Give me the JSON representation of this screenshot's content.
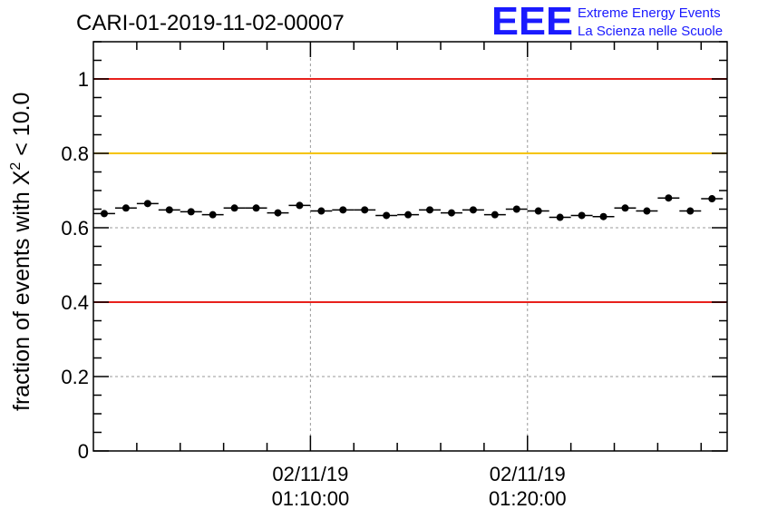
{
  "chart_data": {
    "type": "scatter",
    "title": "CARI-01-2019-11-02-00007",
    "ylabel_main": "fraction of events with X",
    "ylabel_sup": "2",
    "ylabel_tail": " < 10.0",
    "xlabel": "",
    "ylim": [
      0,
      1.1
    ],
    "xlim_minutes": [
      0,
      29.2
    ],
    "y_ticks": [
      {
        "value": 0,
        "label": "0"
      },
      {
        "value": 0.2,
        "label": "0.2"
      },
      {
        "value": 0.4,
        "label": "0.4"
      },
      {
        "value": 0.6,
        "label": "0.6"
      },
      {
        "value": 0.8,
        "label": "0.8"
      },
      {
        "value": 1,
        "label": "1"
      }
    ],
    "x_ticks": [
      {
        "minute": 10,
        "date": "02/11/19",
        "time": "01:10:00"
      },
      {
        "minute": 20,
        "date": "02/11/19",
        "time": "01:20:00"
      }
    ],
    "reference_lines": [
      {
        "y": 1.0,
        "color": "#e8211c"
      },
      {
        "y": 0.8,
        "color": "#f5c400"
      },
      {
        "y": 0.4,
        "color": "#e8211c"
      }
    ],
    "bin_width_minutes": 1,
    "series": [
      {
        "name": "fraction",
        "marker_color": "#000000",
        "x": [
          0.5,
          1.5,
          2.5,
          3.5,
          4.5,
          5.5,
          6.5,
          7.5,
          8.5,
          9.5,
          10.5,
          11.5,
          12.5,
          13.5,
          14.5,
          15.5,
          16.5,
          17.5,
          18.5,
          19.5,
          20.5,
          21.5,
          22.5,
          23.5,
          24.5,
          25.5,
          26.5,
          27.5,
          28.5
        ],
        "values": [
          0.638,
          0.653,
          0.665,
          0.648,
          0.643,
          0.635,
          0.653,
          0.653,
          0.64,
          0.66,
          0.645,
          0.648,
          0.648,
          0.633,
          0.635,
          0.648,
          0.64,
          0.648,
          0.635,
          0.65,
          0.645,
          0.628,
          0.633,
          0.63,
          0.653,
          0.645,
          0.68,
          0.645,
          0.678
        ],
        "errors": [
          0.009,
          0.009,
          0.009,
          0.009,
          0.009,
          0.009,
          0.009,
          0.009,
          0.009,
          0.009,
          0.009,
          0.009,
          0.009,
          0.009,
          0.009,
          0.009,
          0.009,
          0.009,
          0.009,
          0.009,
          0.009,
          0.009,
          0.009,
          0.009,
          0.009,
          0.009,
          0.009,
          0.009,
          0.009
        ]
      }
    ],
    "grid": true
  },
  "logo": {
    "letters": "EEE",
    "line1": "Extreme Energy Events",
    "line2": "La Scienza nelle Scuole",
    "color": "#1a1aff"
  }
}
